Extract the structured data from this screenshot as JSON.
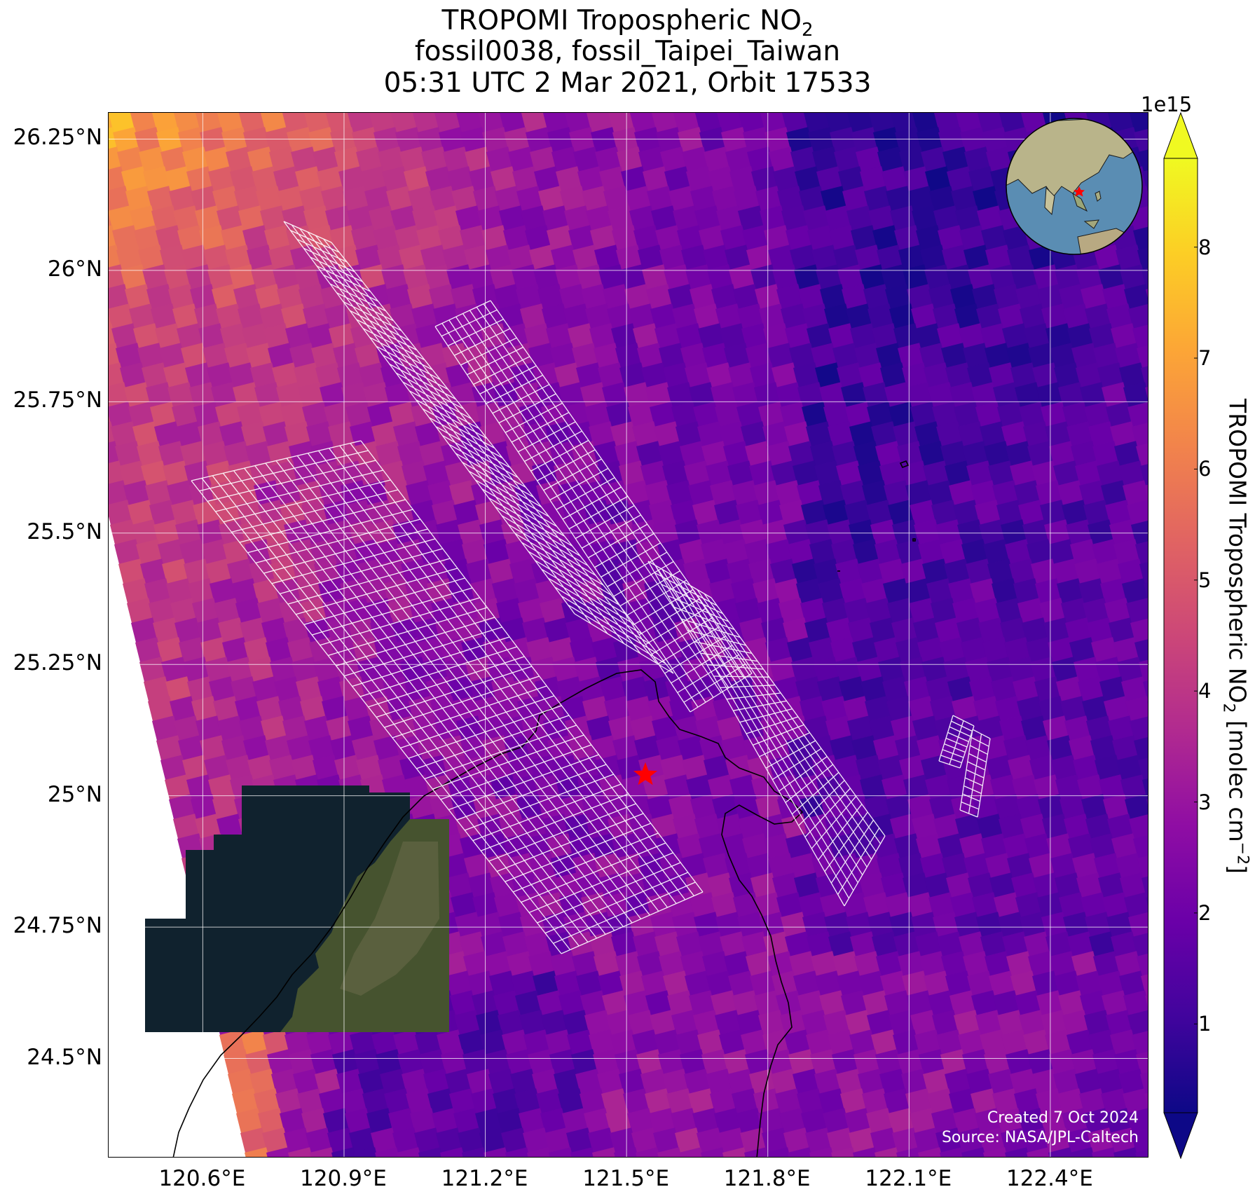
{
  "title": {
    "line1_prefix": "TROPOMI Tropospheric NO",
    "line1_sub": "2",
    "line2": "fossil0038, fossil_Taipei_Taiwan",
    "line3": "05:31 UTC 2 Mar 2021, Orbit 17533"
  },
  "axes": {
    "lat_ticks": [
      "26.25°N",
      "26°N",
      "25.75°N",
      "25.5°N",
      "25.25°N",
      "25°N",
      "24.75°N",
      "24.5°N"
    ],
    "lat_values": [
      26.25,
      26.0,
      25.75,
      25.5,
      25.25,
      25.0,
      24.75,
      24.5
    ],
    "lon_ticks": [
      "120.6°E",
      "120.9°E",
      "121.2°E",
      "121.5°E",
      "121.8°E",
      "122.1°E",
      "122.4°E"
    ],
    "lon_values": [
      120.6,
      120.9,
      121.2,
      121.5,
      121.8,
      122.1,
      122.4
    ],
    "lon_range": [
      120.4,
      122.61
    ],
    "lat_range": [
      24.31,
      26.3
    ],
    "grid": true
  },
  "colorbar": {
    "exponent_label": "1e15",
    "ticks": [
      "1",
      "2",
      "3",
      "4",
      "5",
      "6",
      "7",
      "8"
    ],
    "tick_values": [
      1,
      2,
      3,
      4,
      5,
      6,
      7,
      8
    ],
    "range": [
      0.2,
      8.8
    ],
    "label_prefix": "TROPOMI Tropospheric NO",
    "label_sub": "2",
    "label_suffix": " [molec cm",
    "label_sup": "−2",
    "label_end": "]",
    "colormap": "plasma",
    "extend": "both"
  },
  "site_marker": {
    "lon": 121.54,
    "lat": 25.04,
    "color": "#ff0000",
    "icon": "star-icon"
  },
  "credit": {
    "line1": "Created 7 Oct 2024",
    "line2": "Source: NASA/JPL-Caltech"
  },
  "inset": {
    "type": "globe",
    "marker_color": "#ff0000",
    "icon": "star-icon"
  },
  "colors": {
    "grid": "#ffffff",
    "coastline": "#000000",
    "target_overlay": "#ffffff",
    "ocean_background": "#10222e",
    "land_background": "#3f4a2c"
  }
}
